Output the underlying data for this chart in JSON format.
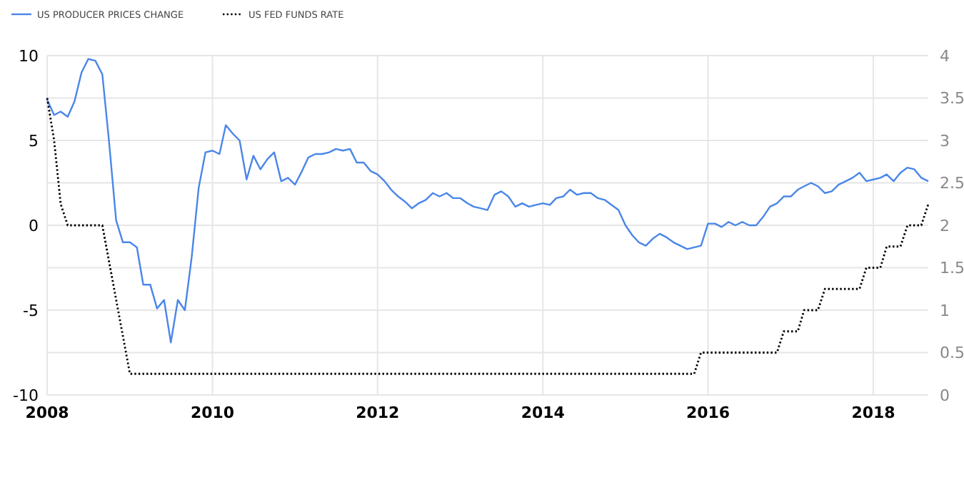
{
  "chart_data": {
    "type": "line",
    "legend": "top left",
    "grid": true,
    "xlim": [
      "2008-01",
      "2018-09"
    ],
    "xticks": [
      {
        "value": "2008-01",
        "label": "2008"
      },
      {
        "value": "2010-01",
        "label": "2010"
      },
      {
        "value": "2012-01",
        "label": "2012"
      },
      {
        "value": "2014-01",
        "label": "2014"
      },
      {
        "value": "2016-01",
        "label": "2016"
      },
      {
        "value": "2018-01",
        "label": "2018"
      }
    ],
    "ylim": [
      -10,
      10
    ],
    "yticks": [
      -10,
      -5,
      0,
      5,
      10
    ],
    "y2lim": [
      0,
      4
    ],
    "y2ticks": [
      0,
      0.5,
      1,
      1.5,
      2,
      2.5,
      3,
      3.5,
      4
    ],
    "series": [
      {
        "name": "US PRODUCER PRICES CHANGE",
        "color": "#4a86e8",
        "line_style": "solid",
        "x": [
          "2008-01",
          "2008-02",
          "2008-03",
          "2008-04",
          "2008-05",
          "2008-06",
          "2008-07",
          "2008-08",
          "2008-09",
          "2008-10",
          "2008-11",
          "2008-12",
          "2009-01",
          "2009-02",
          "2009-03",
          "2009-04",
          "2009-05",
          "2009-06",
          "2009-07",
          "2009-08",
          "2009-09",
          "2009-10",
          "2009-11",
          "2009-12",
          "2010-01",
          "2010-02",
          "2010-03",
          "2010-04",
          "2010-05",
          "2010-06",
          "2010-07",
          "2010-08",
          "2010-09",
          "2010-10",
          "2010-11",
          "2010-12",
          "2011-01",
          "2011-02",
          "2011-03",
          "2011-04",
          "2011-05",
          "2011-06",
          "2011-07",
          "2011-08",
          "2011-09",
          "2011-10",
          "2011-11",
          "2011-12",
          "2012-01",
          "2012-02",
          "2012-03",
          "2012-04",
          "2012-05",
          "2012-06",
          "2012-07",
          "2012-08",
          "2012-09",
          "2012-10",
          "2012-11",
          "2012-12",
          "2013-01",
          "2013-02",
          "2013-03",
          "2013-04",
          "2013-05",
          "2013-06",
          "2013-07",
          "2013-08",
          "2013-09",
          "2013-10",
          "2013-11",
          "2013-12",
          "2014-01",
          "2014-02",
          "2014-03",
          "2014-04",
          "2014-05",
          "2014-06",
          "2014-07",
          "2014-08",
          "2014-09",
          "2014-10",
          "2014-11",
          "2014-12",
          "2015-01",
          "2015-02",
          "2015-03",
          "2015-04",
          "2015-05",
          "2015-06",
          "2015-07",
          "2015-08",
          "2015-09",
          "2015-10",
          "2015-11",
          "2015-12",
          "2016-01",
          "2016-02",
          "2016-03",
          "2016-04",
          "2016-05",
          "2016-06",
          "2016-07",
          "2016-08",
          "2016-09",
          "2016-10",
          "2016-11",
          "2016-12",
          "2017-01",
          "2017-02",
          "2017-03",
          "2017-04",
          "2017-05",
          "2017-06",
          "2017-07",
          "2017-08",
          "2017-09",
          "2017-10",
          "2017-11",
          "2017-12",
          "2018-01",
          "2018-02",
          "2018-03",
          "2018-04",
          "2018-05",
          "2018-06",
          "2018-07",
          "2018-08",
          "2018-09"
        ],
        "values": [
          7.4,
          6.5,
          6.7,
          6.4,
          7.3,
          9.0,
          9.8,
          9.7,
          8.9,
          4.9,
          0.3,
          -1.0,
          -1.0,
          -1.3,
          -3.5,
          -3.5,
          -4.9,
          -4.4,
          -6.9,
          -4.4,
          -5.0,
          -1.9,
          2.2,
          4.3,
          4.4,
          4.2,
          5.9,
          5.4,
          5.0,
          2.7,
          4.1,
          3.3,
          3.9,
          4.3,
          2.6,
          2.8,
          2.4,
          3.2,
          4.0,
          4.2,
          4.2,
          4.3,
          4.5,
          4.4,
          4.5,
          3.7,
          3.7,
          3.2,
          3.0,
          2.6,
          2.1,
          1.7,
          1.4,
          1.0,
          1.3,
          1.5,
          1.9,
          1.7,
          1.9,
          1.6,
          1.6,
          1.3,
          1.1,
          1.0,
          0.9,
          1.8,
          2.0,
          1.7,
          1.1,
          1.3,
          1.1,
          1.2,
          1.3,
          1.2,
          1.6,
          1.7,
          2.1,
          1.8,
          1.9,
          1.9,
          1.6,
          1.5,
          1.2,
          0.9,
          0.0,
          -0.6,
          -1.0,
          -1.2,
          -0.8,
          -0.5,
          -0.7,
          -1.0,
          -1.2,
          -1.4,
          -1.3,
          -1.2,
          0.1,
          0.1,
          -0.1,
          0.2,
          0.0,
          0.2,
          0.0,
          0.0,
          0.5,
          1.1,
          1.3,
          1.7,
          1.7,
          2.1,
          2.3,
          2.5,
          2.3,
          1.9,
          2.0,
          2.4,
          2.6,
          2.8,
          3.1,
          2.6,
          2.7,
          2.8,
          3.0,
          2.6,
          3.1,
          3.4,
          3.3,
          2.8,
          2.6
        ]
      },
      {
        "name": "US FED FUNDS RATE",
        "color": "#000000",
        "line_style": "dotted",
        "axis": "y2",
        "x": [
          "2008-01",
          "2008-02",
          "2008-03",
          "2008-04",
          "2008-09",
          "2009-01",
          "2015-11",
          "2015-12",
          "2016-11",
          "2016-12",
          "2017-02",
          "2017-03",
          "2017-05",
          "2017-06",
          "2017-11",
          "2017-12",
          "2018-02",
          "2018-03",
          "2018-05",
          "2018-06",
          "2018-08",
          "2018-09"
        ],
        "values": [
          3.5,
          3.0,
          2.25,
          2.0,
          2.0,
          0.25,
          0.25,
          0.5,
          0.5,
          0.75,
          0.75,
          1.0,
          1.0,
          1.25,
          1.25,
          1.5,
          1.5,
          1.75,
          1.75,
          2.0,
          2.0,
          2.25
        ]
      }
    ]
  }
}
